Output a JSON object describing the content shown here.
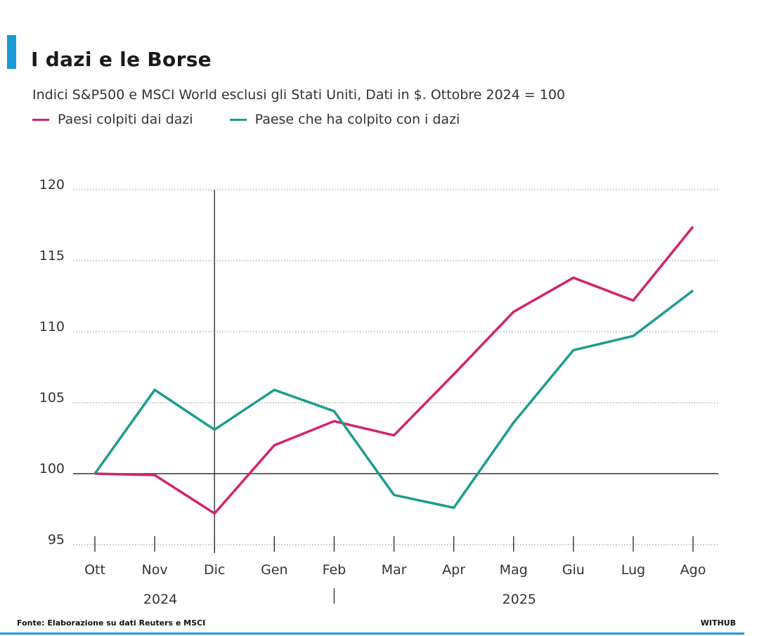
{
  "header": {
    "title": "I dazi e le Borse",
    "subtitle": "Indici S&P500 e MSCI World esclusi gli Stati Uniti, Dati in $. Ottobre 2024 = 100"
  },
  "legend": [
    {
      "label": "Paesi colpiti dai dazi",
      "color": "#d1246e"
    },
    {
      "label": "Paese che ha colpito con i dazi",
      "color": "#1e9c8e"
    }
  ],
  "footer": {
    "source": "Fonte: Elaborazione su dati Reuters e MSCI",
    "brand": "WITHUB"
  },
  "chart_data": {
    "type": "line",
    "categories": [
      "Ott",
      "Nov",
      "Dic",
      "Gen",
      "Feb",
      "Mar",
      "Apr",
      "Mag",
      "Giu",
      "Lug",
      "Ago"
    ],
    "year_labels": [
      {
        "label": "2024",
        "category": "Nov"
      },
      {
        "label": "2025",
        "category": "Mag"
      }
    ],
    "series": [
      {
        "name": "Paesi colpiti dai dazi",
        "color": "#d1246e",
        "values": [
          100.0,
          99.9,
          97.2,
          102.0,
          103.7,
          102.7,
          107.0,
          111.4,
          113.8,
          112.2,
          117.4
        ]
      },
      {
        "name": "Paese che ha colpito con i dazi",
        "color": "#1e9c8e",
        "values": [
          100.0,
          105.9,
          103.1,
          105.9,
          104.4,
          98.5,
          97.6,
          103.6,
          108.7,
          109.7,
          112.9
        ]
      }
    ],
    "ylim": [
      95,
      120
    ],
    "yticks": [
      95,
      100,
      105,
      110,
      115,
      120
    ],
    "baseline": 100,
    "grid": true
  }
}
